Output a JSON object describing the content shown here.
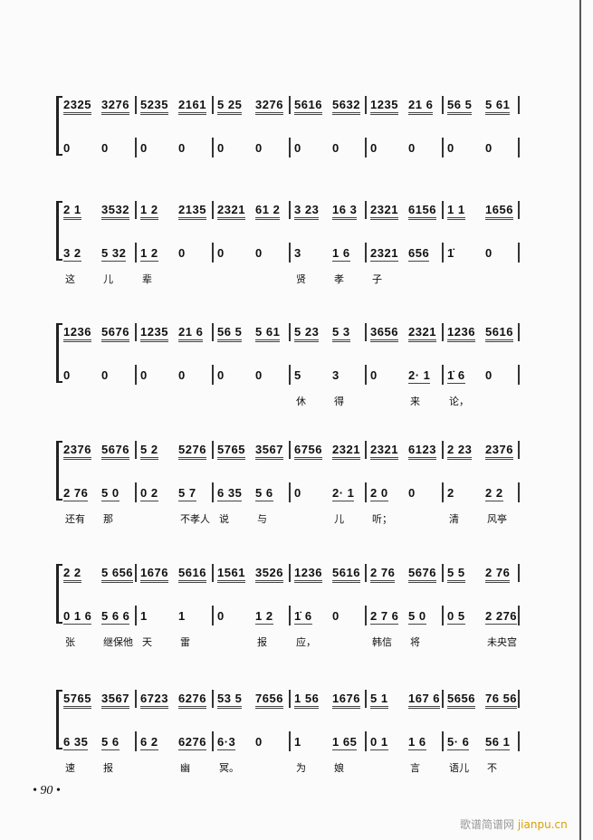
{
  "systems": [
    {
      "upper": [
        "2325",
        "3276",
        "5235",
        "2161",
        "5 25",
        "3276",
        "5616",
        "5632",
        "1235",
        "21 6",
        "56 5",
        "5 61"
      ],
      "lower": [
        "0",
        "0",
        "0",
        "0",
        "0",
        "0",
        "0",
        "0",
        "0",
        "0",
        "0",
        "0"
      ],
      "lyrics": [
        "",
        "",
        "",
        "",
        "",
        "",
        "",
        "",
        "",
        "",
        "",
        ""
      ]
    },
    {
      "upper": [
        "2 1",
        "3532",
        "1 2",
        "2135",
        "2321",
        "61 2",
        "3 23",
        "16 3",
        "2321",
        "6156",
        "1 1",
        "1656"
      ],
      "lower": [
        "3 2",
        "5 32",
        "1 2",
        "0",
        "0",
        "0",
        "3",
        "1 6",
        "2321",
        "656",
        "1̇",
        "0"
      ],
      "lyrics": [
        "这",
        "儿",
        "辈",
        "",
        "",
        "",
        "贤",
        "孝",
        "子",
        "",
        "",
        ""
      ]
    },
    {
      "upper": [
        "1236",
        "5676",
        "1235",
        "21 6",
        "56 5",
        "5 61",
        "5 23",
        "5 3",
        "3656",
        "2321",
        "1236",
        "5616"
      ],
      "lower": [
        "0",
        "0",
        "0",
        "0",
        "0",
        "0",
        "5",
        "3",
        "0",
        "2· 1",
        "1̇ 6",
        "0"
      ],
      "lyrics": [
        "",
        "",
        "",
        "",
        "",
        "",
        "休",
        "得",
        "",
        "来",
        "论，",
        ""
      ]
    },
    {
      "upper": [
        "2376",
        "5676",
        "5 2",
        "5276",
        "5765",
        "3567",
        "6756",
        "2321",
        "2321",
        "6123",
        "2 23",
        "2376"
      ],
      "lower": [
        "2 76",
        "5 0",
        "0 2",
        "5 7",
        "6 35",
        "5 6",
        "0",
        "2· 1",
        "2 0",
        "0",
        "2",
        "2 2"
      ],
      "lyrics": [
        "还有",
        "那",
        "",
        "不孝人",
        "说",
        "与",
        "",
        "儿",
        "听；",
        "",
        "清",
        "风亭"
      ]
    },
    {
      "upper": [
        "2 2",
        "5 656",
        "1676",
        "5616",
        "1561",
        "3526",
        "1236",
        "5616",
        "2 76",
        "5676",
        "5 5",
        "2 76"
      ],
      "lower": [
        "0 1 6",
        "5 6 6",
        "1",
        "1",
        "0",
        "1 2",
        "1̇ 6",
        "0",
        "2 7 6",
        "5 0",
        "0 5",
        "2 276"
      ],
      "lyrics": [
        "张",
        "继保他",
        "天",
        "雷",
        "",
        "报",
        "应，",
        "",
        "韩信",
        "将",
        "",
        "未央宫"
      ]
    },
    {
      "upper": [
        "5765",
        "3567",
        "6723",
        "6276",
        "53 5",
        "7656",
        "1 56",
        "1676",
        "5 1",
        "167 6",
        "5656",
        "76 56"
      ],
      "lower": [
        "6 35",
        "5 6",
        "6 2",
        "6276",
        "6·3",
        "0",
        "1",
        "1 65",
        "0 1",
        "1 6",
        "5· 6",
        "56 1"
      ],
      "lyrics": [
        "速",
        "报",
        "",
        "幽",
        "冥。",
        "",
        "为",
        "娘",
        "",
        "言",
        "语儿",
        "不"
      ]
    }
  ],
  "page_number": "• 90 •",
  "watermark": {
    "cn": "歌谱简谱网",
    "en": "jianpu.cn"
  }
}
